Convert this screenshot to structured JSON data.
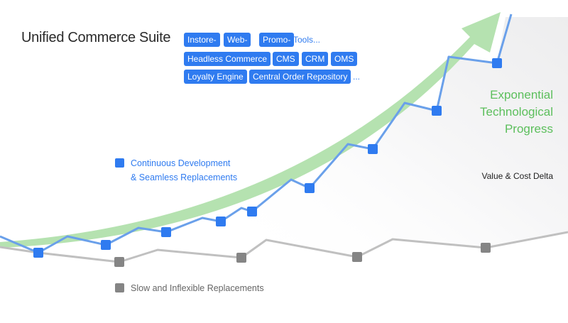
{
  "title": "Unified Commerce Suite",
  "tags": {
    "row1": [
      "Instore-",
      "Web-",
      "Promo-"
    ],
    "row1_more": "Tools...",
    "row2": [
      "Headless Commerce",
      "CMS",
      "CRM",
      "OMS"
    ],
    "row3": [
      "Loyalty Engine",
      "Central Order Repository"
    ],
    "row3_more": "..."
  },
  "legend": {
    "continuous_line1": "Continuous Development",
    "continuous_line2": "& Seamless Replacements",
    "slow": "Slow and Inflexible Replacements"
  },
  "progress_label": [
    "Exponential",
    "Technological",
    "Progress"
  ],
  "delta_label": "Value & Cost Delta",
  "colors": {
    "blue": "#2f7bf0",
    "blue_line": "#6aa0ea",
    "green": "#5cbf5c",
    "green_arrow": "#b5e2b0",
    "grey_marker": "#858585",
    "grey_line": "#c0c0c0"
  }
}
